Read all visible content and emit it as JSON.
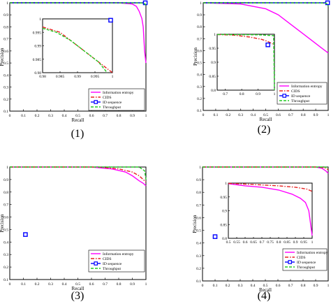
{
  "figure": {
    "series_styles": [
      {
        "name": "Information entropy",
        "color": "#ff00ff",
        "dash": "",
        "marker": false
      },
      {
        "name": "CIDS",
        "color": "#e82020",
        "dash": "5,2,1.5,2",
        "marker": false
      },
      {
        "name": "ID sequence",
        "color": "#0000ff",
        "dash": "",
        "marker": true
      },
      {
        "name": "Throughput",
        "color": "#22cc22",
        "dash": "4,2",
        "marker": false
      }
    ]
  },
  "chart_data": [
    {
      "type": "line",
      "caption": "(1)",
      "xlabel": "Recall",
      "ylabel": "Precision",
      "xlim": [
        0,
        1
      ],
      "ylim": [
        0.1,
        1
      ],
      "xticks": [
        "0",
        "0.1",
        "0.2",
        "0.3",
        "0.4",
        "0.5",
        "0.6",
        "0.7",
        "0.8",
        "0.9",
        "1"
      ],
      "yticks": [
        "0.1",
        "0.2",
        "0.3",
        "0.4",
        "0.5",
        "0.6",
        "0.7",
        "0.8",
        "0.9",
        "1"
      ],
      "legend": "bottom-right",
      "series": [
        {
          "name": "Information entropy",
          "x": [
            0,
            0.8,
            0.9,
            0.93,
            0.95,
            0.97,
            0.98,
            0.985,
            0.99,
            1.0
          ],
          "y": [
            1,
            1,
            0.99,
            0.97,
            0.93,
            0.87,
            0.8,
            0.7,
            0.6,
            0.5
          ]
        },
        {
          "name": "CIDS",
          "x": [
            0,
            0.5,
            0.95,
            0.98,
            0.995
          ],
          "y": [
            1,
            1,
            0.999,
            0.998,
            0.99
          ]
        },
        {
          "name": "ID sequence",
          "x": [
            0,
            0.2,
            0.995
          ],
          "y": [
            1,
            1,
            1
          ]
        },
        {
          "name": "Throughput",
          "x": [
            0,
            0.5,
            0.97,
            0.995,
            1.0
          ],
          "y": [
            1,
            1,
            0.999,
            0.99,
            0.97
          ]
        }
      ],
      "inset": {
        "xlim": [
          0.98,
          1.0
        ],
        "ylim": [
          0.98,
          1.0
        ],
        "xticks": [
          "0.98",
          "0.985",
          "0.99",
          "0.995",
          "1"
        ],
        "yticks": [
          "0.98",
          "0.985",
          "0.99",
          "0.995",
          "1"
        ],
        "series": [
          {
            "name": "CIDS",
            "x": [
              0.98,
              0.985,
              0.99,
              0.995,
              1.0
            ],
            "y": [
              0.997,
              0.995,
              0.99,
              0.985,
              0.98
            ]
          },
          {
            "name": "Throughput",
            "x": [
              0.98,
              0.984,
              0.988,
              0.992,
              0.996,
              0.9985
            ],
            "y": [
              0.9965,
              0.995,
              0.992,
              0.988,
              0.984,
              0.98
            ]
          },
          {
            "name": "ID sequence",
            "x": [
              0.9995
            ],
            "y": [
              0.9995
            ]
          }
        ]
      }
    },
    {
      "type": "line",
      "caption": "(2)",
      "xlabel": "Recall",
      "ylabel": "Precision",
      "xlim": [
        0,
        1
      ],
      "ylim": [
        0.1,
        1
      ],
      "xticks": [
        "0",
        "0.1",
        "0.2",
        "0.3",
        "0.4",
        "0.5",
        "0.6",
        "0.7",
        "0.8",
        "0.9",
        "1"
      ],
      "yticks": [
        "0.1",
        "0.2",
        "0.3",
        "0.4",
        "0.5",
        "0.6",
        "0.7",
        "0.8",
        "0.9",
        "1"
      ],
      "legend": "bottom-right",
      "series": [
        {
          "name": "Information entropy",
          "x": [
            0,
            0.3,
            0.5,
            0.6,
            0.7,
            0.8,
            0.9,
            0.95,
            1.0
          ],
          "y": [
            1,
            0.99,
            0.95,
            0.9,
            0.82,
            0.74,
            0.66,
            0.62,
            0.58
          ]
        },
        {
          "name": "CIDS",
          "x": [
            0,
            0.5,
            0.95,
            0.99,
            1.0
          ],
          "y": [
            1,
            1,
            0.999,
            0.995,
            0.99
          ]
        },
        {
          "name": "ID sequence",
          "x": [
            0,
            0.3,
            0.995
          ],
          "y": [
            1,
            1,
            1
          ]
        },
        {
          "name": "Throughput",
          "x": [
            0,
            0.5,
            0.97,
            0.995,
            1.0
          ],
          "y": [
            1,
            1,
            0.999,
            0.99,
            0.97
          ]
        }
      ],
      "inset": {
        "xlim": [
          0.65,
          1.0
        ],
        "ylim": [
          0.8,
          1.0
        ],
        "xticks": [
          "0.7",
          "0.8",
          "0.9",
          "1"
        ],
        "yticks": [
          "0.8",
          "0.85",
          "0.9",
          "0.95",
          "1"
        ],
        "series": [
          {
            "name": "CIDS",
            "x": [
              0.65,
              0.75,
              0.85,
              0.92,
              0.96,
              0.99
            ],
            "y": [
              0.999,
              0.997,
              0.99,
              0.982,
              0.974,
              0.965
            ]
          },
          {
            "name": "Throughput",
            "x": [
              0.65,
              0.9,
              0.995,
              1.0
            ],
            "y": [
              0.999,
              0.998,
              0.995,
              0.8
            ]
          },
          {
            "name": "ID sequence",
            "x": [
              0.96
            ],
            "y": [
              0.962
            ]
          }
        ]
      }
    },
    {
      "type": "line",
      "caption": "(3)",
      "xlabel": "Recall",
      "ylabel": "Precision",
      "xlim": [
        0,
        1
      ],
      "ylim": [
        0.1,
        1
      ],
      "xticks": [
        "0",
        "0.1",
        "0.2",
        "0.3",
        "0.4",
        "0.5",
        "0.6",
        "0.7",
        "0.8",
        "0.9",
        "1"
      ],
      "yticks": [
        "0.1",
        "0.2",
        "0.3",
        "0.4",
        "0.5",
        "0.6",
        "0.7",
        "0.8",
        "0.9",
        "1"
      ],
      "legend": "bottom-right",
      "series": [
        {
          "name": "Information entropy",
          "x": [
            0,
            0.6,
            0.75,
            0.85,
            0.9,
            0.95,
            0.98,
            1.0
          ],
          "y": [
            1,
            1,
            0.985,
            0.96,
            0.93,
            0.89,
            0.87,
            0.85
          ]
        },
        {
          "name": "CIDS",
          "x": [
            0,
            0.65,
            0.8,
            0.9,
            0.95,
            1.0
          ],
          "y": [
            1,
            1,
            0.985,
            0.96,
            0.93,
            0.88
          ]
        },
        {
          "name": "ID sequence",
          "x": [
            0.115
          ],
          "y": [
            0.46
          ]
        },
        {
          "name": "Throughput",
          "x": [
            0,
            0.95,
            0.99,
            1.0
          ],
          "y": [
            1,
            1,
            0.97,
            0.9
          ]
        }
      ]
    },
    {
      "type": "line",
      "caption": "(4)",
      "xlabel": "Recall",
      "ylabel": "Precision",
      "xlim": [
        0,
        1
      ],
      "ylim": [
        0.1,
        1
      ],
      "xticks": [
        "0",
        "0.1",
        "0.2",
        "0.3",
        "0.4",
        "0.5",
        "0.6",
        "0.7",
        "0.8",
        "0.9",
        "1"
      ],
      "yticks": [
        "0.1",
        "0.2",
        "0.3",
        "0.4",
        "0.5",
        "0.6",
        "0.7",
        "0.8",
        "0.9",
        "1"
      ],
      "legend": "bottom-right",
      "series": [
        {
          "name": "Information entropy",
          "x": [
            0,
            0.9,
            0.95,
            0.98,
            1.0
          ],
          "y": [
            1,
            1,
            0.99,
            0.97,
            0.95
          ]
        },
        {
          "name": "CIDS",
          "x": [
            0,
            0.9,
            0.97,
            1.0
          ],
          "y": [
            1,
            1,
            0.995,
            0.98
          ]
        },
        {
          "name": "ID sequence",
          "x": [
            0.1
          ],
          "y": [
            0.45
          ]
        },
        {
          "name": "Throughput",
          "x": [
            0,
            0.98,
            1.0
          ],
          "y": [
            1,
            1,
            0.99
          ]
        }
      ],
      "inset": {
        "xlim": [
          0.5,
          1.0
        ],
        "ylim": [
          0.8,
          1.0
        ],
        "xticks": [
          "0.5",
          "0.55",
          "0.6",
          "0.65",
          "0.7",
          "0.75",
          "0.8",
          "0.85",
          "0.9",
          "0.95",
          "1"
        ],
        "yticks": [
          "0.8",
          "0.85",
          "0.9",
          "0.95",
          "1"
        ],
        "series": [
          {
            "name": "Information entropy",
            "x": [
              0.5,
              0.6,
              0.7,
              0.8,
              0.88,
              0.93,
              0.96,
              0.98,
              1.0
            ],
            "y": [
              0.998,
              0.99,
              0.985,
              0.975,
              0.96,
              0.945,
              0.93,
              0.9,
              0.81
            ]
          },
          {
            "name": "CIDS",
            "x": [
              0.5,
              0.65,
              0.8,
              0.9,
              0.97,
              1.0
            ],
            "y": [
              0.999,
              0.995,
              0.99,
              0.985,
              0.978,
              0.97
            ]
          }
        ]
      }
    }
  ]
}
